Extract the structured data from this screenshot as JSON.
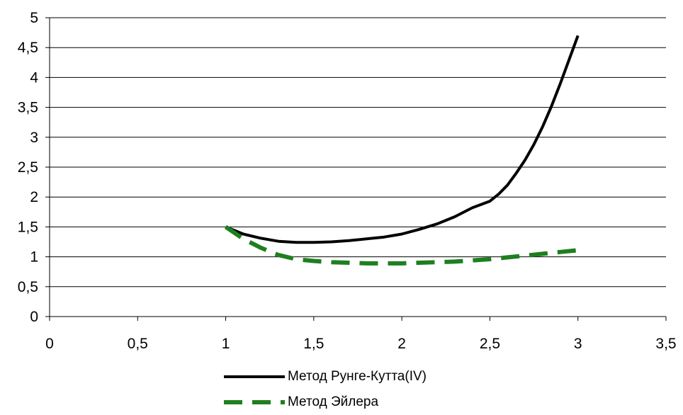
{
  "chart_data": {
    "type": "line",
    "title": "",
    "xlabel": "",
    "ylabel": "",
    "xlim": [
      0,
      3.5
    ],
    "ylim": [
      0,
      5
    ],
    "x_ticks": [
      "0",
      "0,5",
      "1",
      "1,5",
      "2",
      "2,5",
      "3",
      "3,5"
    ],
    "y_ticks": [
      "0",
      "0,5",
      "1",
      "1,5",
      "2",
      "2,5",
      "3",
      "3,5",
      "4",
      "4,5",
      "5"
    ],
    "grid": "horizontal",
    "legend_position": "bottom",
    "series": [
      {
        "name": "Метод Рунге-Кутта(IV)",
        "color": "#000000",
        "style": "solid",
        "x": [
          1.0,
          1.1,
          1.2,
          1.3,
          1.4,
          1.5,
          1.6,
          1.7,
          1.8,
          1.9,
          2.0,
          2.1,
          2.2,
          2.3,
          2.4,
          2.5,
          2.55,
          2.6,
          2.65,
          2.7,
          2.75,
          2.8,
          2.85,
          2.9,
          2.95,
          3.0
        ],
        "y": [
          1.5,
          1.38,
          1.31,
          1.26,
          1.24,
          1.24,
          1.25,
          1.27,
          1.3,
          1.33,
          1.38,
          1.46,
          1.55,
          1.67,
          1.82,
          1.93,
          2.05,
          2.2,
          2.4,
          2.62,
          2.88,
          3.18,
          3.52,
          3.9,
          4.3,
          4.7
        ]
      },
      {
        "name": "Метод Эйлера",
        "color": "#1e7f1e",
        "style": "dashed",
        "x": [
          1.0,
          1.1,
          1.2,
          1.3,
          1.4,
          1.5,
          1.6,
          1.7,
          1.8,
          1.9,
          2.0,
          2.1,
          2.2,
          2.3,
          2.4,
          2.5,
          2.6,
          2.7,
          2.8,
          2.9,
          3.0
        ],
        "y": [
          1.5,
          1.3,
          1.15,
          1.03,
          0.96,
          0.93,
          0.91,
          0.9,
          0.89,
          0.89,
          0.89,
          0.9,
          0.91,
          0.92,
          0.94,
          0.96,
          0.99,
          1.02,
          1.05,
          1.08,
          1.11
        ]
      }
    ]
  }
}
